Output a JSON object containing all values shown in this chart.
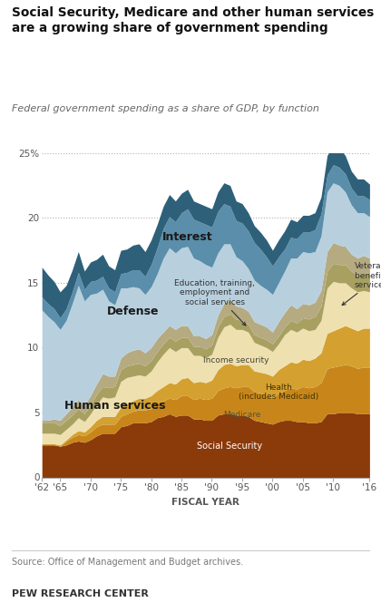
{
  "title": "Social Security, Medicare and other human services\nare a growing share of government spending",
  "subtitle": "Federal government spending as a share of GDP, by function",
  "xlabel": "FISCAL YEAR",
  "source": "Source: Office of Management and Budget archives.",
  "footer": "PEW RESEARCH CENTER",
  "years": [
    1962,
    1963,
    1964,
    1965,
    1966,
    1967,
    1968,
    1969,
    1970,
    1971,
    1972,
    1973,
    1974,
    1975,
    1976,
    1977,
    1978,
    1979,
    1980,
    1981,
    1982,
    1983,
    1984,
    1985,
    1986,
    1987,
    1988,
    1989,
    1990,
    1991,
    1992,
    1993,
    1994,
    1995,
    1996,
    1997,
    1998,
    1999,
    2000,
    2001,
    2002,
    2003,
    2004,
    2005,
    2006,
    2007,
    2008,
    2009,
    2010,
    2011,
    2012,
    2013,
    2014,
    2015,
    2016
  ],
  "social_security": [
    2.5,
    2.5,
    2.5,
    2.4,
    2.5,
    2.7,
    2.8,
    2.7,
    2.9,
    3.2,
    3.4,
    3.4,
    3.4,
    3.9,
    4.0,
    4.2,
    4.2,
    4.2,
    4.3,
    4.6,
    4.7,
    4.9,
    4.7,
    4.8,
    4.8,
    4.5,
    4.5,
    4.4,
    4.4,
    4.8,
    4.9,
    4.9,
    4.8,
    4.8,
    4.7,
    4.4,
    4.3,
    4.2,
    4.1,
    4.3,
    4.4,
    4.4,
    4.3,
    4.3,
    4.2,
    4.2,
    4.3,
    4.9,
    4.9,
    5.0,
    5.0,
    5.0,
    4.9,
    4.9,
    4.9
  ],
  "medicare": [
    0.0,
    0.0,
    0.0,
    0.0,
    0.3,
    0.4,
    0.5,
    0.5,
    0.6,
    0.7,
    0.7,
    0.7,
    0.7,
    0.8,
    0.9,
    0.9,
    1.0,
    1.0,
    1.0,
    1.1,
    1.2,
    1.2,
    1.3,
    1.5,
    1.5,
    1.5,
    1.6,
    1.6,
    1.7,
    1.9,
    2.0,
    2.1,
    2.1,
    2.2,
    2.3,
    2.2,
    2.2,
    2.1,
    2.0,
    2.2,
    2.3,
    2.5,
    2.5,
    2.7,
    2.7,
    2.8,
    3.0,
    3.5,
    3.6,
    3.6,
    3.7,
    3.6,
    3.5,
    3.6,
    3.6
  ],
  "health": [
    0.1,
    0.1,
    0.1,
    0.1,
    0.1,
    0.2,
    0.3,
    0.3,
    0.4,
    0.5,
    0.6,
    0.6,
    0.6,
    0.7,
    0.8,
    0.8,
    0.9,
    0.9,
    1.0,
    1.0,
    1.1,
    1.2,
    1.2,
    1.3,
    1.4,
    1.3,
    1.3,
    1.3,
    1.4,
    1.6,
    1.8,
    1.8,
    1.7,
    1.7,
    1.7,
    1.6,
    1.6,
    1.7,
    1.7,
    1.8,
    1.9,
    2.0,
    2.0,
    2.1,
    2.1,
    2.2,
    2.3,
    2.7,
    2.8,
    2.9,
    3.0,
    2.9,
    2.9,
    3.0,
    3.0
  ],
  "income_security": [
    0.8,
    0.8,
    0.8,
    0.8,
    0.8,
    0.8,
    1.0,
    0.8,
    1.0,
    1.2,
    1.5,
    1.4,
    1.5,
    2.0,
    2.0,
    1.9,
    1.8,
    1.7,
    1.9,
    2.2,
    2.5,
    2.7,
    2.5,
    2.4,
    2.3,
    2.1,
    2.0,
    1.9,
    2.0,
    2.5,
    2.9,
    3.0,
    2.8,
    2.7,
    2.5,
    2.2,
    2.1,
    2.0,
    1.9,
    2.0,
    2.4,
    2.5,
    2.4,
    2.4,
    2.3,
    2.2,
    2.5,
    3.5,
    3.8,
    3.5,
    3.3,
    3.1,
    3.0,
    2.9,
    2.8
  ],
  "veterans": [
    0.8,
    0.8,
    0.8,
    0.7,
    0.7,
    0.7,
    0.7,
    0.6,
    0.7,
    0.8,
    0.8,
    0.8,
    0.8,
    0.9,
    0.9,
    0.9,
    0.9,
    0.8,
    0.8,
    0.8,
    0.8,
    0.8,
    0.8,
    0.8,
    0.8,
    0.7,
    0.7,
    0.7,
    0.7,
    0.8,
    0.8,
    0.8,
    0.8,
    0.7,
    0.6,
    0.6,
    0.6,
    0.6,
    0.6,
    0.6,
    0.6,
    0.7,
    0.7,
    0.8,
    0.9,
    1.0,
    1.1,
    1.3,
    1.4,
    1.4,
    1.4,
    1.3,
    1.3,
    1.4,
    1.4
  ],
  "education": [
    0.2,
    0.2,
    0.3,
    0.4,
    0.5,
    0.6,
    0.7,
    0.6,
    0.7,
    0.8,
    1.0,
    0.9,
    0.8,
    0.9,
    1.0,
    1.1,
    1.1,
    1.0,
    1.0,
    1.0,
    0.9,
    0.9,
    0.9,
    0.9,
    0.9,
    0.8,
    0.8,
    0.8,
    0.8,
    0.9,
    1.0,
    1.1,
    1.0,
    1.0,
    1.0,
    1.0,
    1.0,
    1.0,
    0.9,
    1.1,
    1.1,
    1.2,
    1.1,
    1.1,
    1.1,
    1.1,
    1.2,
    1.5,
    1.6,
    1.5,
    1.4,
    1.3,
    1.3,
    1.3,
    1.2
  ],
  "defense": [
    8.5,
    8.0,
    7.5,
    7.0,
    7.2,
    8.0,
    8.8,
    8.1,
    7.8,
    7.0,
    6.5,
    5.8,
    5.5,
    5.4,
    5.0,
    4.9,
    4.7,
    4.5,
    4.7,
    5.0,
    5.7,
    6.0,
    5.9,
    6.0,
    6.1,
    6.0,
    5.8,
    5.7,
    5.2,
    4.8,
    4.6,
    4.3,
    3.8,
    3.6,
    3.3,
    3.2,
    3.0,
    2.9,
    2.9,
    3.0,
    3.2,
    3.6,
    3.9,
    4.0,
    4.0,
    3.9,
    4.2,
    4.6,
    4.6,
    4.6,
    4.2,
    3.8,
    3.5,
    3.3,
    3.2
  ],
  "interest": [
    1.0,
    1.0,
    1.0,
    0.9,
    0.9,
    0.9,
    1.0,
    0.9,
    1.0,
    1.0,
    1.0,
    1.0,
    1.0,
    1.1,
    1.2,
    1.3,
    1.4,
    1.4,
    1.7,
    2.0,
    2.3,
    2.4,
    2.4,
    2.7,
    2.9,
    3.0,
    3.0,
    3.1,
    3.1,
    3.2,
    3.1,
    2.9,
    2.8,
    2.9,
    2.9,
    2.9,
    2.8,
    2.5,
    2.2,
    2.0,
    1.7,
    1.6,
    1.5,
    1.5,
    1.6,
    1.7,
    1.7,
    1.3,
    1.4,
    1.4,
    1.4,
    1.3,
    1.3,
    1.3,
    1.3
  ],
  "other": [
    2.3,
    2.2,
    2.1,
    2.0,
    1.8,
    1.7,
    1.6,
    1.4,
    1.5,
    1.6,
    1.7,
    1.7,
    1.7,
    1.8,
    1.8,
    1.9,
    2.0,
    1.9,
    1.9,
    1.8,
    1.7,
    1.7,
    1.6,
    1.5,
    1.5,
    1.4,
    1.4,
    1.4,
    1.4,
    1.5,
    1.6,
    1.6,
    1.5,
    1.5,
    1.4,
    1.3,
    1.3,
    1.3,
    1.2,
    1.3,
    1.4,
    1.4,
    1.3,
    1.3,
    1.3,
    1.3,
    1.3,
    1.5,
    1.5,
    1.5,
    1.4,
    1.3,
    1.3,
    1.3,
    1.2
  ],
  "colors": {
    "social_security": "#8B3A0A",
    "medicare": "#C8861A",
    "health": "#D4A030",
    "income_security": "#EFE0B0",
    "veterans": "#A8A060",
    "education": "#B5AA80",
    "defense": "#B8D0DE",
    "interest": "#5A8EAA",
    "other": "#2E607A"
  },
  "ylim": [
    0,
    25
  ],
  "yticks": [
    0,
    5,
    10,
    15,
    20,
    25
  ],
  "xticks": [
    1962,
    1965,
    1970,
    1975,
    1980,
    1985,
    1990,
    1995,
    2000,
    2005,
    2010,
    2016
  ],
  "xticklabels": [
    "'62",
    "'65",
    "'70",
    "'75",
    "'80",
    "'85",
    "'90",
    "'95",
    "'00",
    "'05",
    "'10",
    "'16"
  ]
}
